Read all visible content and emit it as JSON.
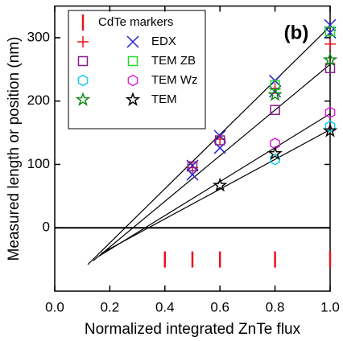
{
  "chart_data": {
    "type": "scatter",
    "xlabel": "Normalized integrated ZnTe flux",
    "ylabel": "Measured length or position (nm)",
    "annotation": "(b)",
    "xlim": [
      0,
      1
    ],
    "ylim": [
      -100,
      350
    ],
    "xticks": [
      {
        "value": 0,
        "label": "0.0"
      },
      {
        "value": 0.2,
        "label": "0.2"
      },
      {
        "value": 0.4,
        "label": "0.4"
      },
      {
        "value": 0.6,
        "label": "0.6"
      },
      {
        "value": 0.8,
        "label": "0.8"
      },
      {
        "value": 1,
        "label": "1.0"
      }
    ],
    "yticks": [
      0,
      100,
      200,
      300
    ],
    "zero_line": true,
    "series": [
      {
        "name": "CdTe markers",
        "color": "#e8141e",
        "marker": "|",
        "x": [
          0.4,
          0.5,
          0.6,
          0.8,
          1.0
        ],
        "values": [
          -50,
          -50,
          -50,
          -50,
          -50
        ]
      },
      {
        "color": "#e8141e",
        "marker": "+",
        "x": [
          0.5,
          0.6,
          0.8,
          1.0
        ],
        "values": [
          95,
          140,
          220,
          290
        ]
      },
      {
        "name": "EDX",
        "color": "#2222cc",
        "marker": "x",
        "x": [
          0.5,
          0.5,
          0.6,
          0.6,
          0.8,
          0.8,
          1.0,
          1.0
        ],
        "values": [
          98,
          84,
          145,
          126,
          232,
          215,
          320,
          308
        ]
      },
      {
        "color": "#8a1a8a",
        "marker": "s",
        "x": [
          0.5,
          0.6,
          0.8,
          1.0
        ],
        "values": [
          97,
          138,
          186,
          252
        ]
      },
      {
        "name": "TEM ZB",
        "color": "#22dd22",
        "marker": "s",
        "x": [
          0.8,
          1.0
        ],
        "values": [
          225,
          310
        ]
      },
      {
        "color": "#11ccee",
        "marker": "h",
        "x": [
          0.8,
          1.0
        ],
        "values": [
          108,
          160
        ]
      },
      {
        "name": "TEM Wz",
        "color": "#dd22dd",
        "marker": "h",
        "x": [
          0.8,
          1.0
        ],
        "values": [
          133,
          182
        ]
      },
      {
        "color": "#118811",
        "marker": "*",
        "x": [
          0.8,
          1.0
        ],
        "values": [
          210,
          265
        ]
      },
      {
        "name": "TEM",
        "color": "#000000",
        "marker": "*",
        "x": [
          0.6,
          0.8,
          1.0
        ],
        "values": [
          67,
          117,
          153
        ]
      }
    ],
    "fit_lines": [
      {
        "x": [
          0.12,
          1.0
        ],
        "values": [
          -58,
          318
        ]
      },
      {
        "x": [
          0.14,
          1.0
        ],
        "values": [
          -52,
          258
        ]
      },
      {
        "x": [
          0.16,
          1.0
        ],
        "values": [
          -45,
          180
        ]
      },
      {
        "x": [
          0.17,
          1.0
        ],
        "values": [
          -40,
          155
        ]
      }
    ]
  }
}
